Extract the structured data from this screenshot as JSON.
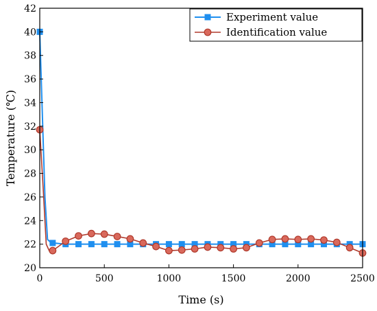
{
  "chart_data": {
    "type": "line",
    "xlabel": "Time (s)",
    "ylabel": "Temperature (℃)",
    "xlim": [
      0,
      2500
    ],
    "ylim": [
      20,
      42
    ],
    "x_ticks": [
      0,
      500,
      1000,
      1500,
      2000,
      2500
    ],
    "y_ticks": [
      20,
      22,
      24,
      26,
      28,
      30,
      32,
      34,
      36,
      38,
      40,
      42
    ],
    "grid": false,
    "legend_position": "top-right",
    "series": [
      {
        "name": "Experiment value",
        "color": "#1f8fef",
        "marker": "square",
        "x": [
          0,
          40,
          60,
          80,
          100,
          200,
          300,
          400,
          500,
          600,
          700,
          800,
          900,
          1000,
          1100,
          1200,
          1300,
          1400,
          1500,
          1600,
          1700,
          1800,
          1900,
          2000,
          2100,
          2200,
          2300,
          2400,
          2500
        ],
        "y": [
          40,
          26,
          22.4,
          22.2,
          22.1,
          22,
          22,
          22,
          22,
          22,
          22,
          22,
          22,
          22,
          22,
          22,
          22,
          22,
          22,
          22,
          22,
          22,
          22,
          22,
          22,
          22,
          22,
          22,
          22
        ],
        "marker_x": [
          0,
          100,
          200,
          300,
          400,
          500,
          600,
          700,
          800,
          900,
          1000,
          1100,
          1200,
          1300,
          1400,
          1500,
          1600,
          1700,
          1800,
          1900,
          2000,
          2100,
          2200,
          2300,
          2400,
          2500
        ]
      },
      {
        "name": "Identification value",
        "color": "#b0392b",
        "marker": "circle",
        "x": [
          0,
          25,
          50,
          75,
          100,
          200,
          300,
          400,
          500,
          600,
          700,
          800,
          900,
          1000,
          1100,
          1200,
          1300,
          1400,
          1500,
          1600,
          1700,
          1800,
          1900,
          2000,
          2100,
          2200,
          2300,
          2400,
          2500
        ],
        "y": [
          31.7,
          27,
          22,
          21.4,
          21.45,
          22.25,
          22.7,
          22.9,
          22.85,
          22.65,
          22.45,
          22.1,
          21.8,
          21.45,
          21.5,
          21.6,
          21.75,
          21.7,
          21.6,
          21.7,
          22.1,
          22.4,
          22.45,
          22.4,
          22.45,
          22.35,
          22.15,
          21.7,
          21.25
        ],
        "marker_x": [
          0,
          100,
          200,
          300,
          400,
          500,
          600,
          700,
          800,
          900,
          1000,
          1100,
          1200,
          1300,
          1400,
          1500,
          1600,
          1700,
          1800,
          1900,
          2000,
          2100,
          2200,
          2300,
          2400,
          2500
        ]
      }
    ]
  }
}
